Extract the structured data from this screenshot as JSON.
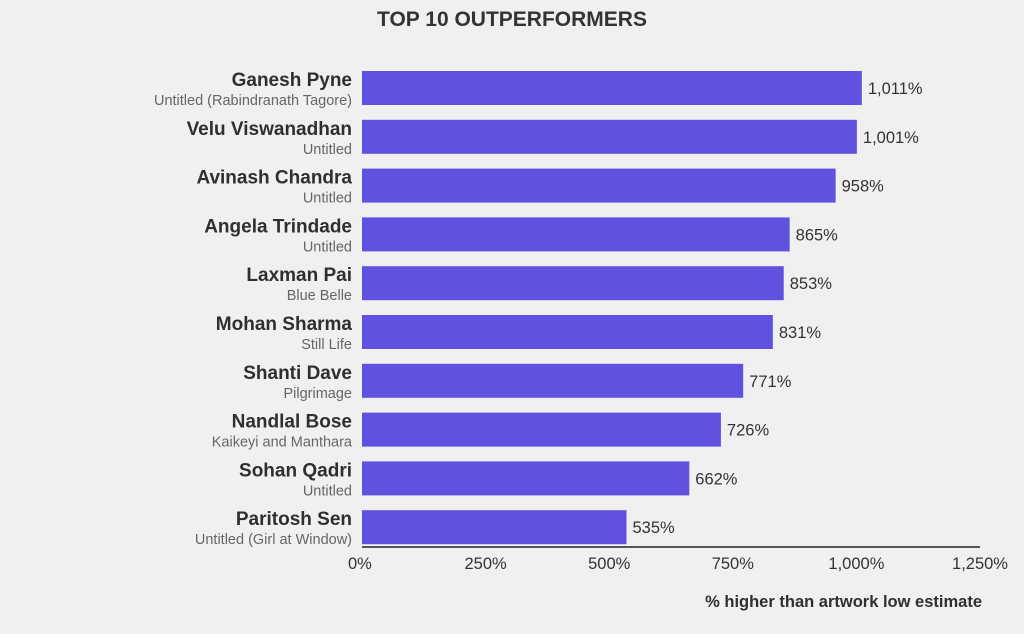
{
  "chart_data": {
    "type": "bar",
    "orientation": "horizontal",
    "title": "TOP 10 OUTPERFORMERS",
    "xlabel": "% higher than artwork low estimate",
    "ylabel": "",
    "xlim": [
      0,
      1250
    ],
    "x_ticks": [
      "0%",
      "250%",
      "500%",
      "750%",
      "1,000%",
      "1,250%"
    ],
    "x_tick_values": [
      0,
      250,
      500,
      750,
      1000,
      1250
    ],
    "grid": false,
    "bar_color": "#6151e0",
    "categories": [
      "Ganesh Pyne",
      "Velu Viswanadhan",
      "Avinash Chandra",
      "Angela Trindade",
      "Laxman Pai",
      "Mohan Sharma",
      "Shanti Dave",
      "Nandlal Bose",
      "Sohan Qadri",
      "Paritosh Sen"
    ],
    "subtitles": [
      "Untitled (Rabindranath Tagore)",
      "Untitled",
      "Untitled",
      "Untitled",
      "Blue Belle",
      "Still Life",
      "Pilgrimage",
      "Kaikeyi and Manthara",
      "Untitled",
      "Untitled (Girl at Window)"
    ],
    "values": [
      1011,
      1001,
      958,
      865,
      853,
      831,
      771,
      726,
      662,
      535
    ],
    "value_labels": [
      "1,011%",
      "1,001%",
      "958%",
      "865%",
      "853%",
      "831%",
      "771%",
      "726%",
      "662%",
      "535%"
    ]
  }
}
